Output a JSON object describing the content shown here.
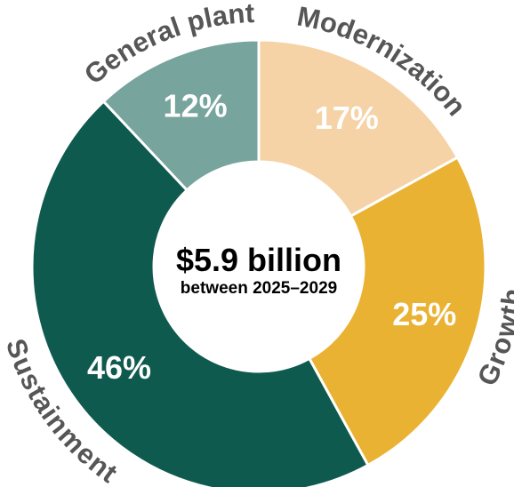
{
  "chart_data": {
    "type": "pie",
    "center_title": "$5.9 billion",
    "center_subtitle": "between 2025–2029",
    "slices": [
      {
        "name": "Modernization",
        "value": 17,
        "value_label": "17%",
        "color": "#f5d3a6"
      },
      {
        "name": "Growth",
        "value": 25,
        "value_label": "25%",
        "color": "#eab233"
      },
      {
        "name": "Sustainment",
        "value": 46,
        "value_label": "46%",
        "color": "#0f5a4e"
      },
      {
        "name": "General plant",
        "value": 12,
        "value_label": "12%",
        "color": "#77a49c"
      }
    ]
  }
}
